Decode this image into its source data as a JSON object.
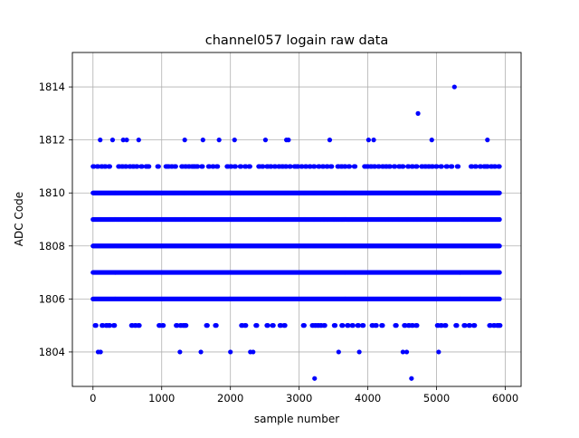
{
  "chart_data": {
    "type": "scatter",
    "title": "channel057 logain raw data",
    "xlabel": "sample number",
    "ylabel": "ADC Code",
    "xlim": [
      -300,
      6230
    ],
    "ylim": [
      1802.7,
      1815.3
    ],
    "xticks": [
      0,
      1000,
      2000,
      3000,
      4000,
      5000,
      6000
    ],
    "yticks": [
      1804,
      1806,
      1808,
      1810,
      1812,
      1814
    ],
    "xtick_labels": [
      "0",
      "1000",
      "2000",
      "3000",
      "4000",
      "5000",
      "6000"
    ],
    "ytick_labels": [
      "1804",
      "1806",
      "1808",
      "1810",
      "1812",
      "1814"
    ],
    "grid": true,
    "marker_color": "#0000ff",
    "series": [
      {
        "points": [
          [
            3225,
            1803
          ],
          [
            4635,
            1803
          ],
          [
            75,
            1804
          ],
          [
            110,
            1804
          ],
          [
            1265,
            1804
          ],
          [
            1570,
            1804
          ],
          [
            2000,
            1804
          ],
          [
            2290,
            1804
          ],
          [
            2330,
            1804
          ],
          [
            3575,
            1804
          ],
          [
            3875,
            1804
          ],
          [
            4510,
            1804
          ],
          [
            4565,
            1804
          ],
          [
            5030,
            1804
          ],
          [
            5260,
            1814
          ],
          [
            105,
            1812
          ],
          [
            285,
            1812
          ],
          [
            440,
            1812
          ],
          [
            490,
            1812
          ],
          [
            665,
            1812
          ],
          [
            1335,
            1812
          ],
          [
            1600,
            1812
          ],
          [
            1835,
            1812
          ],
          [
            2060,
            1812
          ],
          [
            2510,
            1812
          ],
          [
            2815,
            1812
          ],
          [
            2845,
            1812
          ],
          [
            3445,
            1812
          ],
          [
            4010,
            1812
          ],
          [
            4085,
            1812
          ],
          [
            4930,
            1812
          ],
          [
            5740,
            1812
          ],
          [
            4730,
            1813
          ]
        ]
      }
    ],
    "dense_bands": [
      {
        "y": 1806,
        "x_range": [
          0,
          5920
        ]
      },
      {
        "y": 1807,
        "x_range": [
          0,
          5920
        ]
      },
      {
        "y": 1808,
        "x_range": [
          0,
          5920
        ]
      },
      {
        "y": 1809,
        "x_range": [
          0,
          5920
        ]
      },
      {
        "y": 1810,
        "x_range": [
          0,
          5920
        ]
      }
    ],
    "sparse_bands": [
      {
        "y": 1805,
        "x": [
          30,
          130,
          190,
          230,
          300,
          560,
          610,
          660,
          960,
          1010,
          1210,
          1270,
          1310,
          1340,
          1650,
          1780,
          2160,
          2210,
          2370,
          2530,
          2610,
          2720,
          2780,
          3060,
          3190,
          3230,
          3270,
          3310,
          3360,
          3510,
          3620,
          3700,
          3770,
          3850,
          3920,
          4060,
          4110,
          4200,
          4400,
          4530,
          4590,
          4640,
          4700,
          5010,
          5060,
          5120,
          5280,
          5400,
          5470,
          5540,
          5770,
          5830,
          5880,
          5910
        ]
      },
      {
        "y": 1811,
        "x": [
          0,
          60,
          120,
          170,
          230,
          370,
          420,
          470,
          530,
          580,
          630,
          700,
          770,
          800,
          940,
          1060,
          1090,
          1140,
          1190,
          1290,
          1340,
          1390,
          1440,
          1470,
          1510,
          1580,
          1680,
          1740,
          1800,
          1950,
          2000,
          2060,
          2140,
          2210,
          2270,
          2410,
          2460,
          2530,
          2580,
          2640,
          2700,
          2750,
          2800,
          2860,
          2930,
          2970,
          3030,
          3090,
          3150,
          3210,
          3280,
          3340,
          3400,
          3460,
          3560,
          3610,
          3660,
          3720,
          3800,
          3950,
          3990,
          4040,
          4090,
          4150,
          4210,
          4260,
          4310,
          4380,
          4450,
          4500,
          4580,
          4640,
          4700,
          4780,
          4830,
          4880,
          4930,
          4990,
          5060,
          5140,
          5210,
          5300,
          5500,
          5560,
          5630,
          5690,
          5730,
          5790,
          5840,
          5900
        ]
      }
    ]
  }
}
